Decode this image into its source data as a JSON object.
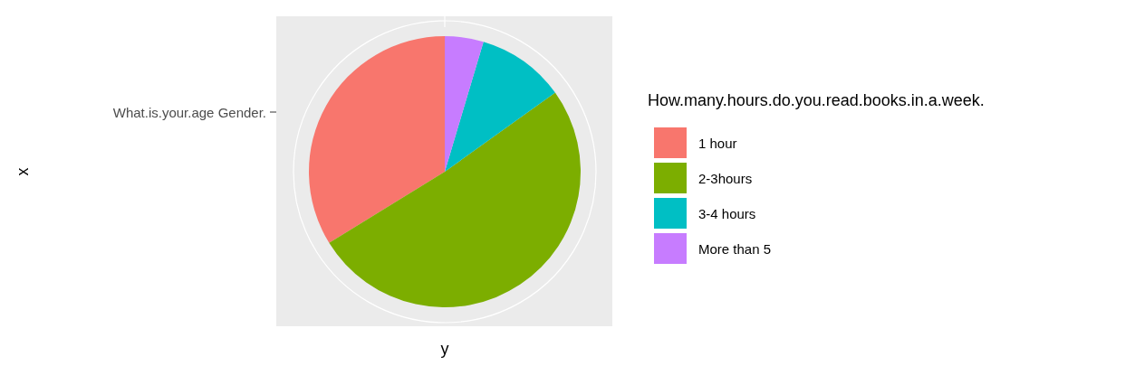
{
  "chart_data": {
    "type": "pie",
    "legend_title": "How.many.hours.do.you.read.books.in.a.week.",
    "ylabel": "x",
    "xlabel": "y",
    "annotations": [
      "What.is.your.age Gender."
    ],
    "categories": [
      "1 hour",
      "2-3hours",
      "3-4 hours",
      "More than 5"
    ],
    "values": [
      33.8,
      51.1,
      10.5,
      4.6
    ],
    "colors": [
      "#f8766d",
      "#7cae00",
      "#00bfc4",
      "#c77cff"
    ],
    "legend": "right"
  }
}
